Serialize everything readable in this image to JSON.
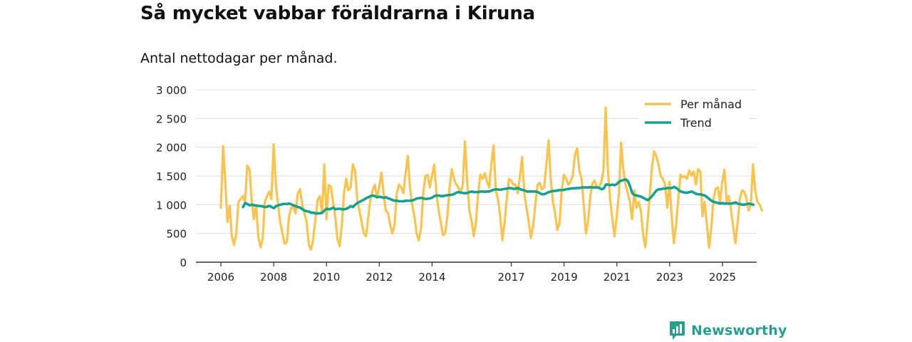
{
  "title": "Så mycket vabbar föräldrarna i Kiruna",
  "subtitle": "Antal nettodagar per månad.",
  "brand": "Newsworthy",
  "chart_data": {
    "type": "line",
    "ylim": [
      0,
      3000
    ],
    "yticks": [
      0,
      500,
      1000,
      1500,
      2000,
      2500,
      3000
    ],
    "ytick_labels": [
      "0",
      "500",
      "1 000",
      "1 500",
      "2 000",
      "2 500",
      "3 000"
    ],
    "xlim": [
      2005.5,
      2026.0
    ],
    "xticks": [
      2006,
      2008,
      2010,
      2012,
      2014,
      2017,
      2019,
      2021,
      2023,
      2025
    ],
    "xtick_labels": [
      "2006",
      "2008",
      "2010",
      "2012",
      "2014",
      "2017",
      "2019",
      "2021",
      "2023",
      "2025"
    ],
    "grid": "horizontal",
    "legend_position": "top-right",
    "colors": {
      "per_month": "#f8c44f",
      "trend": "#17a08f",
      "grid": "#dddddd",
      "axis": "#333333"
    },
    "series": [
      {
        "name": "Per månad",
        "x_start": 2006.0,
        "step": 0.0833,
        "values": [
          950,
          2020,
          1400,
          700,
          980,
          450,
          300,
          500,
          1050,
          1100,
          1150,
          1050,
          1680,
          1620,
          1100,
          750,
          1000,
          450,
          260,
          400,
          1050,
          1150,
          1230,
          1100,
          2050,
          1350,
          1000,
          700,
          500,
          320,
          350,
          800,
          950,
          960,
          850,
          1200,
          1270,
          1000,
          850,
          700,
          300,
          220,
          400,
          750,
          1080,
          1150,
          850,
          1700,
          750,
          1340,
          1320,
          1050,
          800,
          400,
          280,
          650,
          1200,
          1450,
          1250,
          1300,
          1700,
          1600,
          1100,
          900,
          700,
          500,
          450,
          780,
          1100,
          1250,
          1350,
          1120,
          1300,
          1560,
          1200,
          900,
          850,
          650,
          500,
          650,
          1200,
          1350,
          1300,
          1200,
          1550,
          1850,
          1300,
          1000,
          800,
          500,
          380,
          580,
          1200,
          1500,
          1520,
          1300,
          1500,
          1700,
          1200,
          900,
          700,
          470,
          500,
          800,
          1300,
          1620,
          1450,
          1350,
          1300,
          1200,
          1350,
          2100,
          1400,
          900,
          720,
          450,
          700,
          1200,
          1520,
          1450,
          1550,
          1400,
          1300,
          1700,
          2030,
          1250,
          1100,
          800,
          380,
          680,
          1100,
          1450,
          1420,
          1350,
          1350,
          1200,
          1500,
          1830,
          1200,
          950,
          700,
          420,
          630,
          1000,
          1350,
          1380,
          1270,
          1300,
          1700,
          2120,
          1450,
          1050,
          850,
          560,
          680,
          1250,
          1520,
          1450,
          1350,
          1400,
          1500,
          1870,
          1980,
          1600,
          1450,
          1000,
          500,
          700,
          1150,
          1380,
          1420,
          1300,
          1300,
          1400,
          1600,
          2690,
          1600,
          1100,
          750,
          450,
          800,
          1200,
          2080,
          1620,
          1350,
          1200,
          1050,
          750,
          1250,
          950,
          1050,
          900,
          480,
          260,
          700,
          1150,
          1650,
          1930,
          1850,
          1700,
          1500,
          1450,
          1350,
          950,
          1400,
          800,
          330,
          650,
          1100,
          1520,
          1480,
          1500,
          1450,
          1600,
          1500,
          1580,
          1350,
          1620,
          1580,
          800,
          1050,
          650,
          250,
          600,
          1100,
          1280,
          1300,
          1050,
          1400,
          1610,
          1050,
          1150,
          900,
          600,
          330,
          700,
          1100,
          1250,
          1230,
          1100,
          900,
          1000,
          1700,
          1250,
          1050,
          1000,
          900
        ]
      },
      {
        "name": "Trend",
        "x_start": 2006.84,
        "step": 0.0833,
        "values": [
          960,
          1030,
          1010,
          990,
          1000,
          990,
          985,
          980,
          975,
          970,
          960,
          965,
          980,
          960,
          940,
          975,
          990,
          1000,
          1010,
          1015,
          1010,
          1020,
          1005,
          990,
          975,
          960,
          950,
          920,
          900,
          885,
          880,
          860,
          860,
          850,
          850,
          850,
          860,
          900,
          930,
          920,
          930,
          950,
          920,
          930,
          930,
          920,
          920,
          930,
          950,
          975,
          960,
          1000,
          1030,
          1050,
          1070,
          1090,
          1115,
          1130,
          1150,
          1160,
          1150,
          1130,
          1140,
          1130,
          1120,
          1130,
          1110,
          1100,
          1080,
          1070,
          1070,
          1060,
          1060,
          1060,
          1070,
          1070,
          1070,
          1075,
          1090,
          1110,
          1115,
          1120,
          1110,
          1100,
          1105,
          1110,
          1125,
          1150,
          1160,
          1160,
          1150,
          1150,
          1160,
          1165,
          1170,
          1175,
          1185,
          1210,
          1220,
          1210,
          1205,
          1200,
          1205,
          1220,
          1230,
          1220,
          1220,
          1220,
          1230,
          1230,
          1225,
          1230,
          1230,
          1250,
          1260,
          1270,
          1265,
          1260,
          1270,
          1275,
          1280,
          1290,
          1285,
          1275,
          1280,
          1290,
          1270,
          1260,
          1250,
          1230,
          1230,
          1230,
          1230,
          1230,
          1220,
          1200,
          1180,
          1185,
          1200,
          1220,
          1230,
          1240,
          1240,
          1250,
          1255,
          1255,
          1260,
          1270,
          1275,
          1280,
          1285,
          1285,
          1290,
          1290,
          1300,
          1300,
          1300,
          1300,
          1305,
          1300,
          1300,
          1300,
          1290,
          1270,
          1280,
          1350,
          1350,
          1340,
          1350,
          1340,
          1360,
          1400,
          1420,
          1430,
          1440,
          1410,
          1320,
          1200,
          1170,
          1160,
          1150,
          1140,
          1120,
          1100,
          1080,
          1110,
          1150,
          1200,
          1250,
          1270,
          1270,
          1280,
          1280,
          1290,
          1290,
          1290,
          1310,
          1290,
          1260,
          1230,
          1220,
          1210,
          1210,
          1220,
          1230,
          1210,
          1190,
          1180,
          1180,
          1170,
          1160,
          1130,
          1100,
          1070,
          1050,
          1040,
          1030,
          1020,
          1030,
          1020,
          1020,
          1020,
          1020,
          1030,
          1040,
          1020,
          1010,
          1000,
          1000,
          1010,
          1020,
          1010,
          1000
        ]
      }
    ]
  }
}
